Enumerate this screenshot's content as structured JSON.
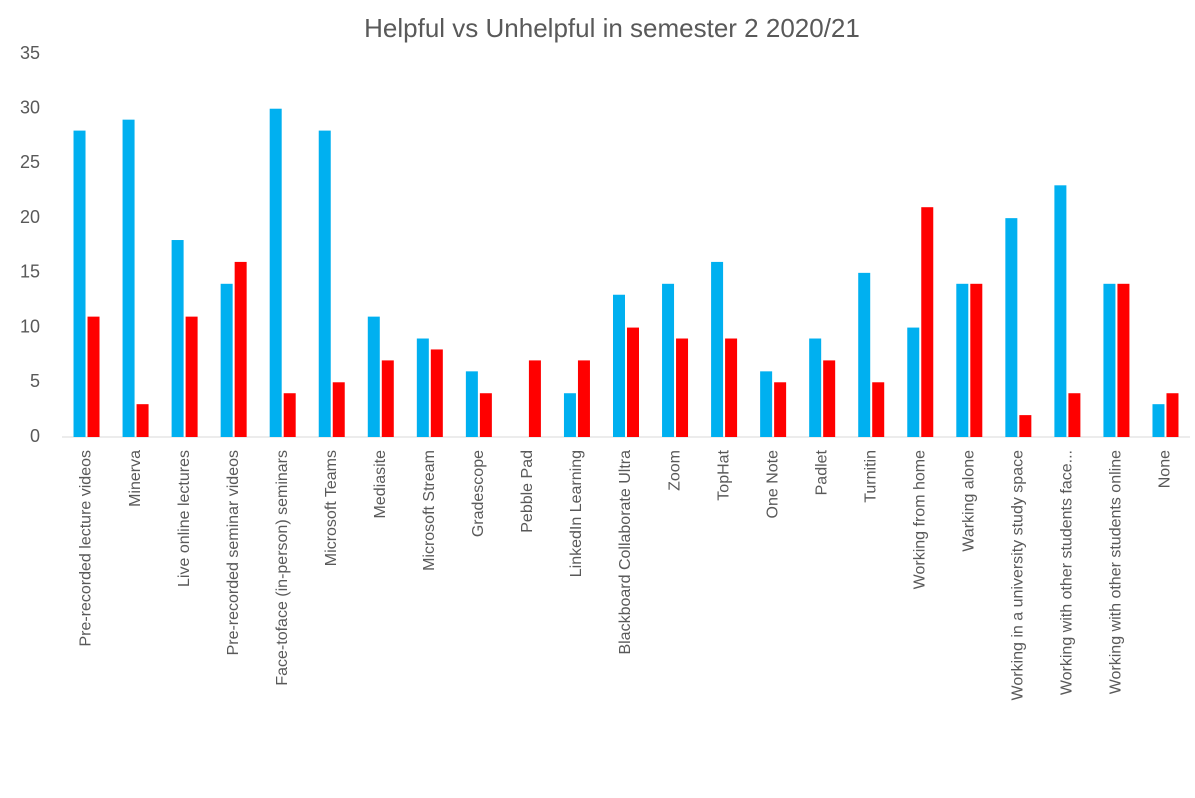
{
  "chart_data": {
    "type": "bar",
    "title": "Helpful vs Unhelpful in semester 2 2020/21",
    "categories": [
      "Pre-recorded lecture videos",
      "Minerva",
      "Live online lectures",
      "Pre-recorded seminar videos",
      "Face-toface (in-person) seminars",
      "Microsoft Teams",
      "Mediasite",
      "Microsoft Stream",
      "Gradescope",
      "Pebble Pad",
      "LinkedIn Learning",
      "Blackboard Collaborate Ultra",
      "Zoom",
      "TopHat",
      "One Note",
      "Padlet",
      "Turnitin",
      "Working from home",
      "Warking alone",
      "Working in a university study space",
      "Working with other students face...",
      "Working with other students online",
      "None"
    ],
    "series": [
      {
        "color": "#00b0f0",
        "values": [
          28,
          29,
          18,
          14,
          30,
          28,
          11,
          9,
          6,
          0,
          4,
          13,
          14,
          16,
          6,
          9,
          15,
          10,
          14,
          20,
          23,
          14,
          3
        ]
      },
      {
        "color": "#ff0000",
        "values": [
          11,
          3,
          11,
          16,
          4,
          5,
          7,
          8,
          4,
          7,
          7,
          10,
          9,
          9,
          5,
          7,
          5,
          21,
          14,
          2,
          4,
          14,
          4
        ]
      }
    ],
    "ylim": [
      0,
      35
    ],
    "yticks": [
      0,
      5,
      10,
      15,
      20,
      25,
      30,
      35
    ],
    "grid": false
  }
}
